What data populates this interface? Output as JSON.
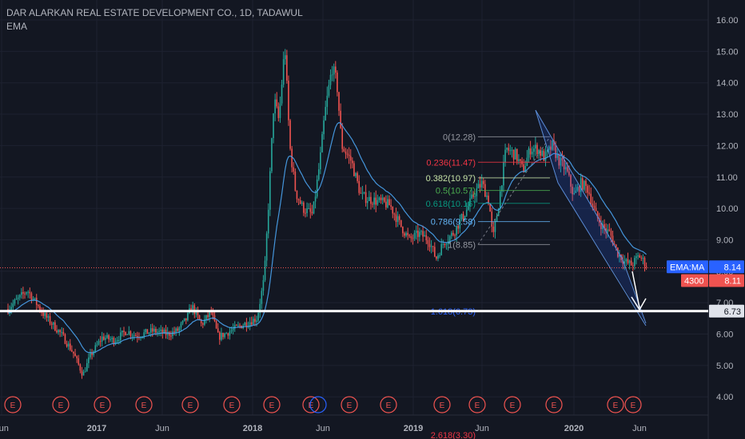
{
  "header": {
    "title": "DAR ALARKAN REAL ESTATE DEVELOPMENT CO., 1D, TADAWUL",
    "indicator": "EMA"
  },
  "colors": {
    "bg": "#131722",
    "up": "#26a69a",
    "down": "#ef5350",
    "ema": "#4aa3f0",
    "grid": "#1e2230",
    "axis": "#787b86",
    "channel": "#5b8dd8"
  },
  "chart_data": {
    "type": "candlestick",
    "symbol": "DAR ALARKAN REAL ESTATE DEVELOPMENT CO.",
    "interval": "1D",
    "exchange": "TADAWUL",
    "ylim": [
      3.5,
      16.5
    ],
    "y_ticks": [
      "16.00",
      "15.00",
      "14.00",
      "13.00",
      "12.00",
      "11.00",
      "10.00",
      "9.00",
      "8.00",
      "7.00",
      "6.00",
      "5.00",
      "4.00"
    ],
    "x_ticks": [
      "Jun",
      "2017",
      "Jun",
      "2018",
      "Jun",
      "2019",
      "Jun",
      "2020",
      "Jun"
    ],
    "close_path": [
      [
        0,
        6.8
      ],
      [
        0.8,
        7.4
      ],
      [
        1.5,
        6.6
      ],
      [
        2.2,
        6.0
      ],
      [
        2.7,
        5.4
      ],
      [
        3.1,
        4.7
      ],
      [
        3.4,
        5.3
      ],
      [
        3.9,
        5.9
      ],
      [
        4.4,
        5.8
      ],
      [
        4.9,
        6.1
      ],
      [
        5.3,
        5.95
      ],
      [
        6.0,
        6.1
      ],
      [
        6.6,
        6.0
      ],
      [
        7.0,
        6.1
      ],
      [
        7.4,
        6.5
      ],
      [
        7.6,
        6.9
      ],
      [
        8.0,
        6.3
      ],
      [
        8.4,
        6.7
      ],
      [
        8.7,
        5.9
      ],
      [
        9.2,
        6.1
      ],
      [
        9.7,
        6.3
      ],
      [
        10.3,
        6.5
      ],
      [
        10.6,
        7.8
      ],
      [
        10.8,
        10.5
      ],
      [
        11.0,
        13.5
      ],
      [
        11.2,
        12.8
      ],
      [
        11.45,
        15.2
      ],
      [
        11.65,
        12.0
      ],
      [
        11.9,
        10.5
      ],
      [
        12.2,
        10.0
      ],
      [
        12.6,
        9.8
      ],
      [
        12.9,
        11.5
      ],
      [
        13.1,
        13.0
      ],
      [
        13.4,
        14.5
      ],
      [
        13.6,
        14.0
      ],
      [
        13.8,
        12.0
      ],
      [
        14.2,
        11.5
      ],
      [
        14.6,
        10.4
      ],
      [
        14.9,
        10.3
      ],
      [
        15.4,
        10.2
      ],
      [
        15.8,
        10.1
      ],
      [
        16.2,
        9.5
      ],
      [
        16.6,
        9.0
      ],
      [
        17.0,
        9.2
      ],
      [
        17.4,
        9.0
      ],
      [
        17.7,
        8.4
      ],
      [
        18.0,
        8.9
      ],
      [
        18.4,
        9.2
      ],
      [
        18.7,
        9.6
      ],
      [
        19.0,
        10.0
      ],
      [
        19.3,
        10.5
      ],
      [
        19.6,
        10.8
      ],
      [
        19.9,
        10.2
      ],
      [
        20.05,
        9.0
      ],
      [
        20.3,
        10.2
      ],
      [
        20.6,
        11.9
      ],
      [
        21.0,
        11.7
      ],
      [
        21.3,
        11.2
      ],
      [
        21.6,
        11.9
      ],
      [
        21.9,
        11.9
      ],
      [
        22.2,
        11.6
      ],
      [
        22.5,
        12.0
      ],
      [
        22.8,
        11.5
      ],
      [
        23.1,
        11.2
      ],
      [
        23.4,
        10.4
      ],
      [
        23.7,
        10.8
      ],
      [
        24.0,
        10.6
      ],
      [
        24.3,
        9.8
      ],
      [
        24.6,
        9.4
      ],
      [
        24.9,
        9.2
      ],
      [
        25.2,
        8.6
      ],
      [
        25.5,
        8.3
      ],
      [
        25.8,
        8.2
      ],
      [
        26.1,
        8.5
      ],
      [
        26.4,
        8.2
      ]
    ],
    "ema_ma": {
      "label": "EMA:MA",
      "value": "8.14"
    },
    "volume": {
      "label": "4300",
      "value": "8.11"
    },
    "support_level": "6.73",
    "fibonacci": [
      {
        "label": "0(12.28)",
        "value": 12.28,
        "color": "#9598a1"
      },
      {
        "label": "0.236(11.47)",
        "value": 11.47,
        "color": "#f23645"
      },
      {
        "label": "0.382(10.97)",
        "value": 10.97,
        "color": "#c5e1a5"
      },
      {
        "label": "0.5(10.57)",
        "value": 10.57,
        "color": "#4caf50"
      },
      {
        "label": "0.618(10.16)",
        "value": 10.16,
        "color": "#089981"
      },
      {
        "label": "0.786(9.58)",
        "value": 9.58,
        "color": "#64b5f6"
      },
      {
        "label": "1(8.85)",
        "value": 8.85,
        "color": "#9598a1"
      },
      {
        "label": "1.618(6.73)",
        "value": 6.73,
        "color": "#2962ff"
      },
      {
        "label": "2.618(3.30)",
        "value": 3.3,
        "color": "#f23645"
      }
    ],
    "events": {
      "label": "E",
      "count": 16
    }
  }
}
